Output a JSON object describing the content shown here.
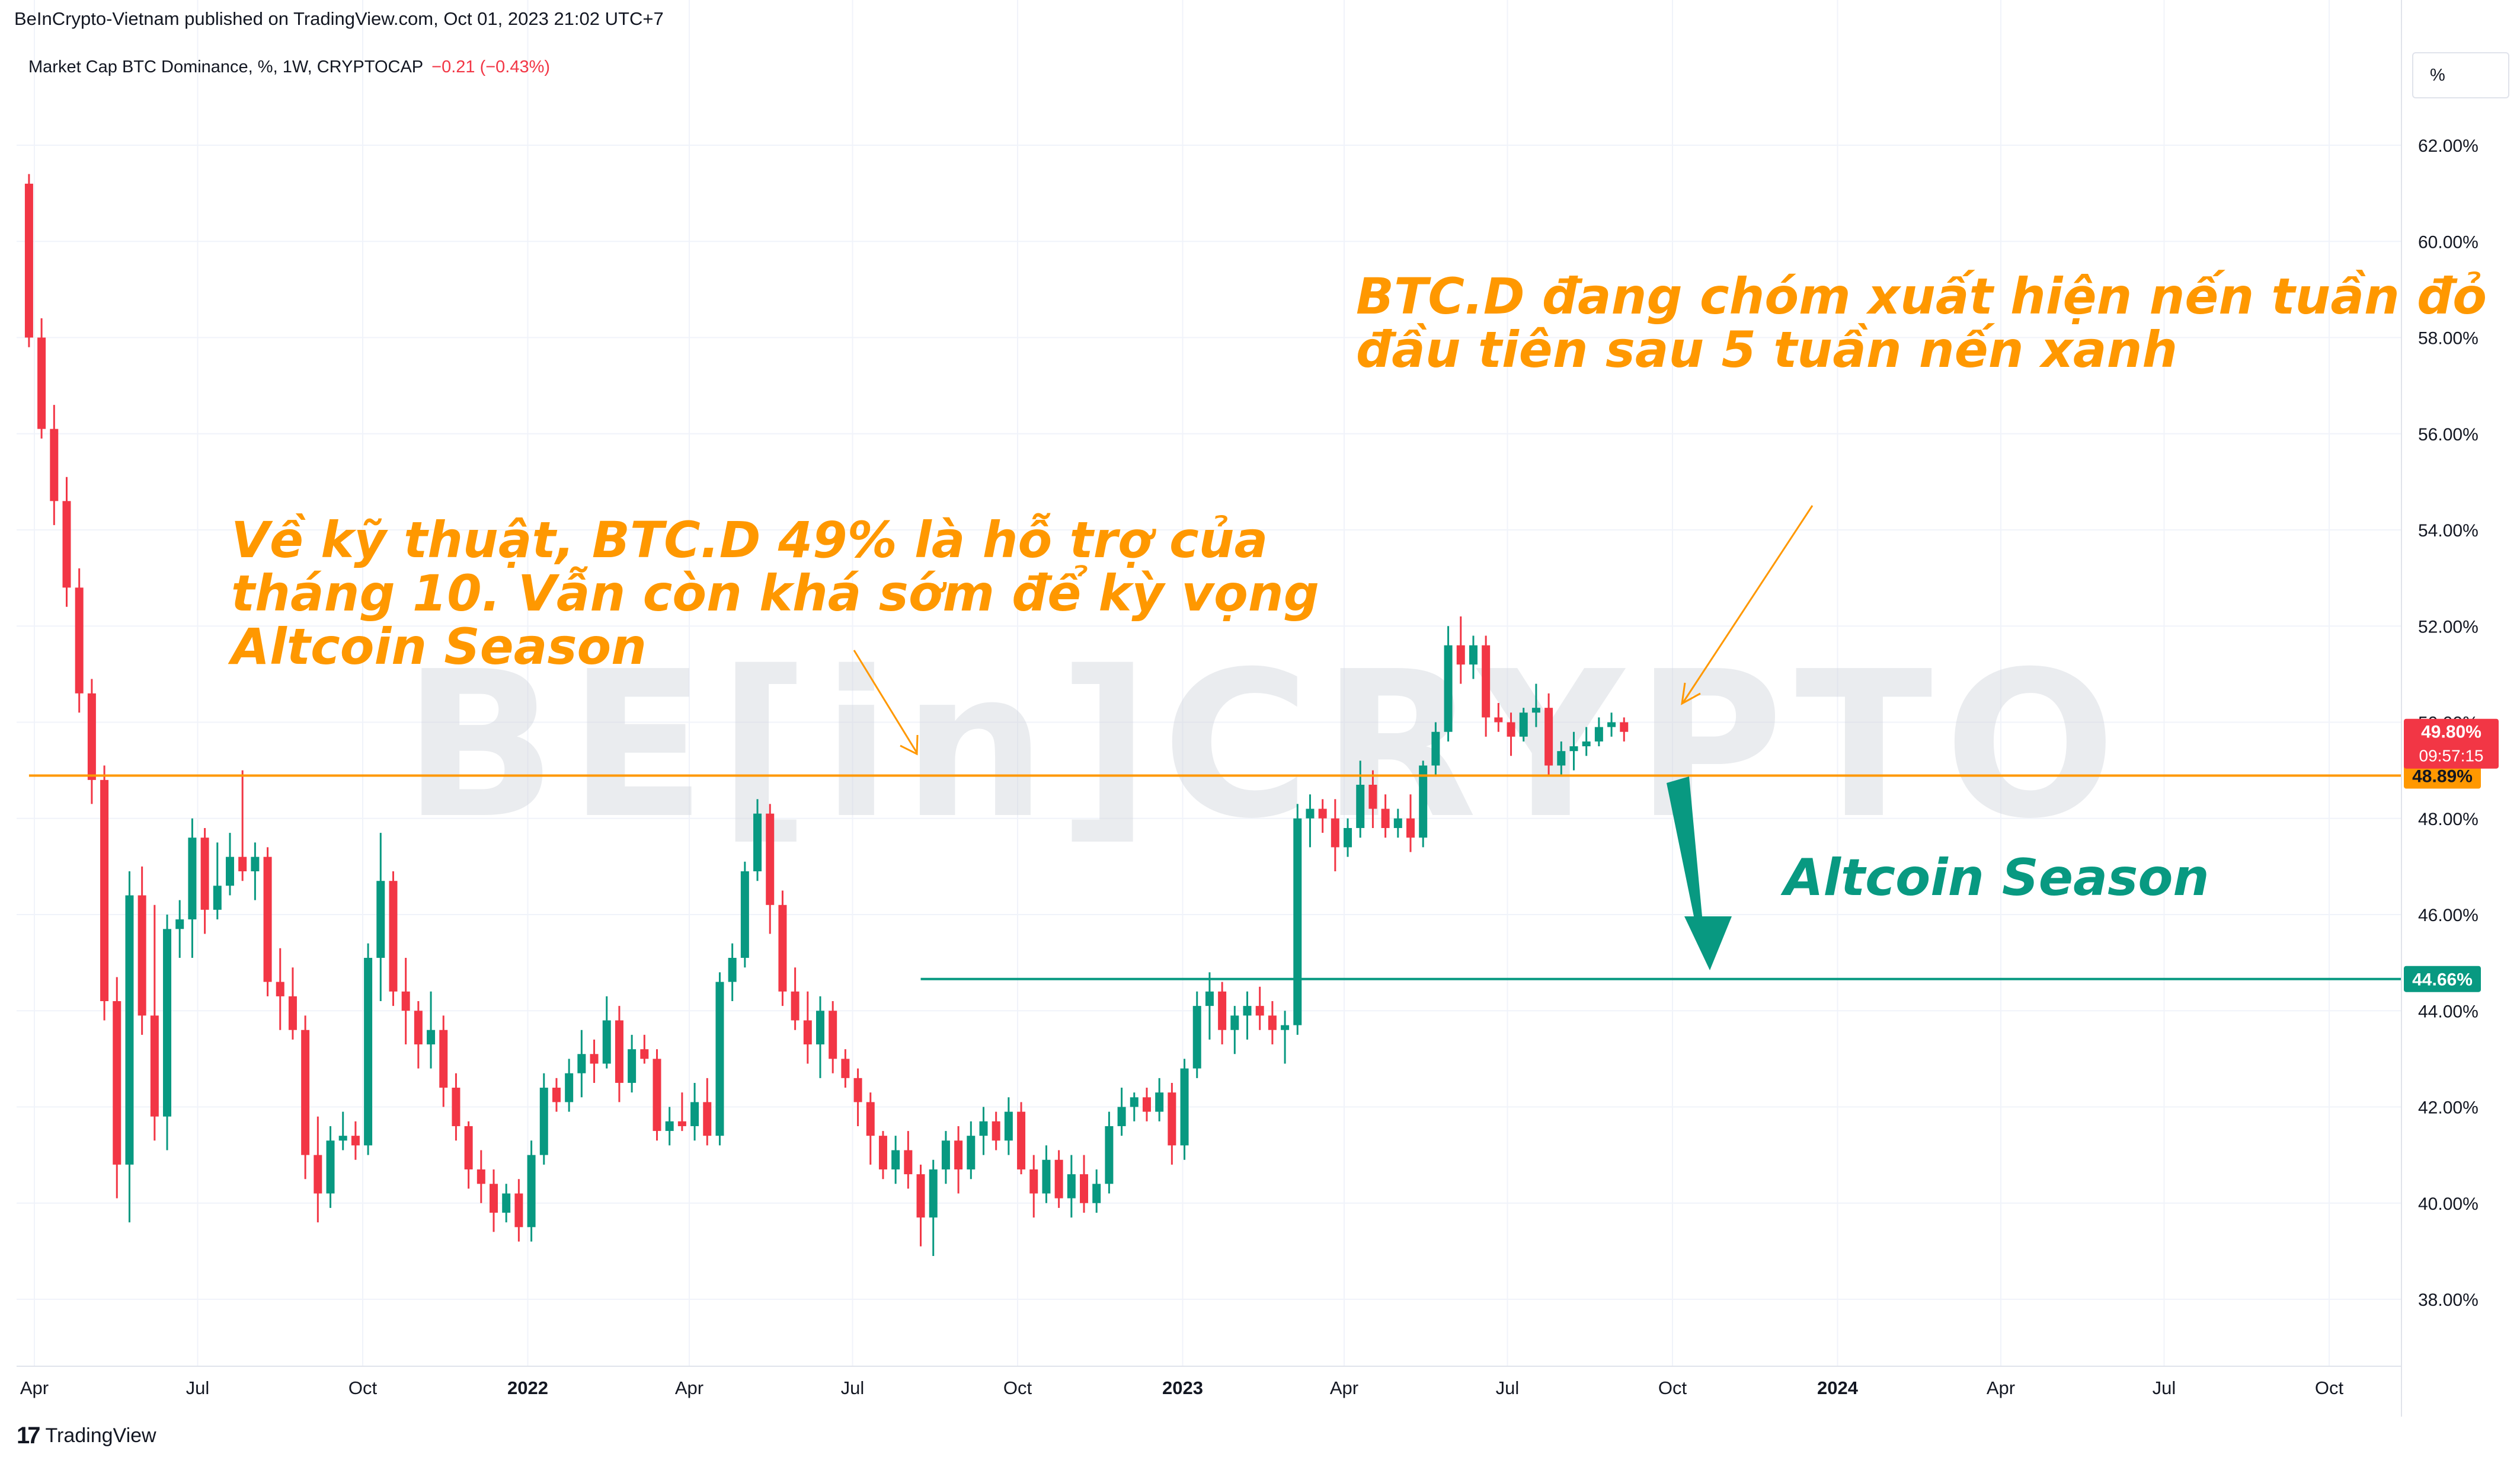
{
  "header": {
    "publisher": "BeInCrypto-Vietnam published on TradingView.com, Oct 01, 2023 21:02 UTC+7",
    "symbol": "Market Cap BTC Dominance, %, 1W, CRYPTOCAP",
    "change": "−0.21 (−0.43%)"
  },
  "price_scale_unit": "%",
  "watermark": "BE[in]CRYPTO",
  "annotations": {
    "top_right_line1": "BTC.D đang chóm xuất hiện nến tuần đỏ",
    "top_right_line2": "đầu tiên sau 5 tuần nến xanh",
    "left_line1": "Về kỹ thuật, BTC.D 49% là hỗ trợ của",
    "left_line2": "tháng 10. Vẫn còn khá sớm để kỳ vọng",
    "left_line3": "Altcoin Season",
    "altcoin": "Altcoin Season"
  },
  "colors": {
    "up": "#089981",
    "down": "#f23645",
    "orange": "#ff9800",
    "teal": "#089981",
    "grid": "#f0f3fa",
    "axis_text": "#131722"
  },
  "footer": {
    "brand": "TradingView"
  },
  "chart_data": {
    "type": "candlestick",
    "title": "Market Cap BTC Dominance, %, 1W, CRYPTOCAP",
    "ylabel": "%",
    "ylim": [
      37.0,
      64.0
    ],
    "y_ticks": [
      38,
      40,
      42,
      44,
      46,
      48,
      50,
      52,
      54,
      56,
      58,
      60,
      62
    ],
    "y_tick_labels": [
      "38.00%",
      "40.00%",
      "42.00%",
      "44.00%",
      "46.00%",
      "48.00%",
      "50.00%",
      "52.00%",
      "54.00%",
      "56.00%",
      "58.00%",
      "60.00%",
      "62.00%"
    ],
    "x_labels": [
      {
        "label": "Apr",
        "x": "2021-04-01",
        "bold": false
      },
      {
        "label": "Jul",
        "x": "2021-07-01",
        "bold": false
      },
      {
        "label": "Oct",
        "x": "2021-10-01",
        "bold": false
      },
      {
        "label": "2022",
        "x": "2022-01-01",
        "bold": true
      },
      {
        "label": "Apr",
        "x": "2022-04-01",
        "bold": false
      },
      {
        "label": "Jul",
        "x": "2022-07-01",
        "bold": false
      },
      {
        "label": "Oct",
        "x": "2022-10-01",
        "bold": false
      },
      {
        "label": "2023",
        "x": "2023-01-01",
        "bold": true
      },
      {
        "label": "Apr",
        "x": "2023-04-01",
        "bold": false
      },
      {
        "label": "Jul",
        "x": "2023-07-01",
        "bold": false
      },
      {
        "label": "Oct",
        "x": "2023-10-01",
        "bold": false
      },
      {
        "label": "2024",
        "x": "2024-01-01",
        "bold": true
      },
      {
        "label": "Apr",
        "x": "2024-04-01",
        "bold": false
      },
      {
        "label": "Jul",
        "x": "2024-07-01",
        "bold": false
      },
      {
        "label": "Oct",
        "x": "2024-10-01",
        "bold": false
      }
    ],
    "first_candle": "2021-03-29",
    "interval_days": 7,
    "candles": [
      [
        61.2,
        61.4,
        57.8,
        58.0
      ],
      [
        58.0,
        58.4,
        55.9,
        56.1
      ],
      [
        56.1,
        56.6,
        54.1,
        54.6
      ],
      [
        54.6,
        55.1,
        52.4,
        52.8
      ],
      [
        52.8,
        53.2,
        50.2,
        50.6
      ],
      [
        50.6,
        50.9,
        48.3,
        48.8
      ],
      [
        48.8,
        49.1,
        43.8,
        44.2
      ],
      [
        44.2,
        44.7,
        40.1,
        40.8
      ],
      [
        40.8,
        46.9,
        39.6,
        46.4
      ],
      [
        46.4,
        47.0,
        43.5,
        43.9
      ],
      [
        43.9,
        46.2,
        41.3,
        41.8
      ],
      [
        41.8,
        46.0,
        41.1,
        45.7
      ],
      [
        45.7,
        46.3,
        45.1,
        45.9
      ],
      [
        45.9,
        48.0,
        45.1,
        47.6
      ],
      [
        47.6,
        47.8,
        45.6,
        46.1
      ],
      [
        46.1,
        47.5,
        45.9,
        46.6
      ],
      [
        46.6,
        47.7,
        46.4,
        47.2
      ],
      [
        47.2,
        49.0,
        46.7,
        46.9
      ],
      [
        46.9,
        47.5,
        46.3,
        47.2
      ],
      [
        47.2,
        47.4,
        44.3,
        44.6
      ],
      [
        44.6,
        45.3,
        43.6,
        44.3
      ],
      [
        44.3,
        44.9,
        43.4,
        43.6
      ],
      [
        43.6,
        43.9,
        40.5,
        41.0
      ],
      [
        41.0,
        41.8,
        39.6,
        40.2
      ],
      [
        40.2,
        41.6,
        39.9,
        41.3
      ],
      [
        41.3,
        41.9,
        41.1,
        41.4
      ],
      [
        41.4,
        41.7,
        40.9,
        41.2
      ],
      [
        41.2,
        45.4,
        41.0,
        45.1
      ],
      [
        45.1,
        47.7,
        44.2,
        46.7
      ],
      [
        46.7,
        46.9,
        44.1,
        44.4
      ],
      [
        44.4,
        45.1,
        43.3,
        44.0
      ],
      [
        44.0,
        44.2,
        42.8,
        43.3
      ],
      [
        43.3,
        44.4,
        42.8,
        43.6
      ],
      [
        43.6,
        43.9,
        42.0,
        42.4
      ],
      [
        42.4,
        42.7,
        41.3,
        41.6
      ],
      [
        41.6,
        41.7,
        40.3,
        40.7
      ],
      [
        40.7,
        41.1,
        40.0,
        40.4
      ],
      [
        40.4,
        40.7,
        39.4,
        39.8
      ],
      [
        39.8,
        40.4,
        39.6,
        40.2
      ],
      [
        40.2,
        40.5,
        39.2,
        39.5
      ],
      [
        39.5,
        41.3,
        39.2,
        41.0
      ],
      [
        41.0,
        42.7,
        40.8,
        42.4
      ],
      [
        42.4,
        42.6,
        41.9,
        42.1
      ],
      [
        42.1,
        43.0,
        41.9,
        42.7
      ],
      [
        42.7,
        43.6,
        42.2,
        43.1
      ],
      [
        43.1,
        43.4,
        42.5,
        42.9
      ],
      [
        42.9,
        44.3,
        42.8,
        43.8
      ],
      [
        43.8,
        44.1,
        42.1,
        42.5
      ],
      [
        42.5,
        43.5,
        42.3,
        43.2
      ],
      [
        43.2,
        43.5,
        42.9,
        43.0
      ],
      [
        43.0,
        43.2,
        41.3,
        41.5
      ],
      [
        41.5,
        42.0,
        41.2,
        41.7
      ],
      [
        41.7,
        42.3,
        41.5,
        41.6
      ],
      [
        41.6,
        42.5,
        41.3,
        42.1
      ],
      [
        42.1,
        42.6,
        41.2,
        41.4
      ],
      [
        41.4,
        44.8,
        41.2,
        44.6
      ],
      [
        44.6,
        45.4,
        44.2,
        45.1
      ],
      [
        45.1,
        47.1,
        44.9,
        46.9
      ],
      [
        46.9,
        48.4,
        46.7,
        48.1
      ],
      [
        48.1,
        48.3,
        45.6,
        46.2
      ],
      [
        46.2,
        46.5,
        44.1,
        44.4
      ],
      [
        44.4,
        44.9,
        43.6,
        43.8
      ],
      [
        43.8,
        44.4,
        42.9,
        43.3
      ],
      [
        43.3,
        44.3,
        42.6,
        44.0
      ],
      [
        44.0,
        44.2,
        42.7,
        43.0
      ],
      [
        43.0,
        43.2,
        42.4,
        42.6
      ],
      [
        42.6,
        42.8,
        41.6,
        42.1
      ],
      [
        42.1,
        42.3,
        40.8,
        41.4
      ],
      [
        41.4,
        41.5,
        40.5,
        40.7
      ],
      [
        40.7,
        41.4,
        40.4,
        41.1
      ],
      [
        41.1,
        41.5,
        40.3,
        40.6
      ],
      [
        40.6,
        40.8,
        39.1,
        39.7
      ],
      [
        39.7,
        40.9,
        38.9,
        40.7
      ],
      [
        40.7,
        41.5,
        40.4,
        41.3
      ],
      [
        41.3,
        41.6,
        40.2,
        40.7
      ],
      [
        40.7,
        41.7,
        40.5,
        41.4
      ],
      [
        41.4,
        42.0,
        41.0,
        41.7
      ],
      [
        41.7,
        41.9,
        41.1,
        41.3
      ],
      [
        41.3,
        42.2,
        41.0,
        41.9
      ],
      [
        41.9,
        42.1,
        40.6,
        40.7
      ],
      [
        40.7,
        41.0,
        39.7,
        40.2
      ],
      [
        40.2,
        41.2,
        40.0,
        40.9
      ],
      [
        40.9,
        41.1,
        39.9,
        40.1
      ],
      [
        40.1,
        41.0,
        39.7,
        40.6
      ],
      [
        40.6,
        41.0,
        39.8,
        40.0
      ],
      [
        40.0,
        40.7,
        39.8,
        40.4
      ],
      [
        40.4,
        41.9,
        40.2,
        41.6
      ],
      [
        41.6,
        42.4,
        41.4,
        42.0
      ],
      [
        42.0,
        42.3,
        41.7,
        42.2
      ],
      [
        42.2,
        42.4,
        41.7,
        41.9
      ],
      [
        41.9,
        42.6,
        41.7,
        42.3
      ],
      [
        42.3,
        42.5,
        40.8,
        41.2
      ],
      [
        41.2,
        43.0,
        40.9,
        42.8
      ],
      [
        42.8,
        44.4,
        42.6,
        44.1
      ],
      [
        44.1,
        44.8,
        43.4,
        44.4
      ],
      [
        44.4,
        44.6,
        43.3,
        43.6
      ],
      [
        43.6,
        44.1,
        43.1,
        43.9
      ],
      [
        43.9,
        44.4,
        43.4,
        44.1
      ],
      [
        44.1,
        44.5,
        43.6,
        43.9
      ],
      [
        43.9,
        44.2,
        43.3,
        43.6
      ],
      [
        43.6,
        44.0,
        42.9,
        43.7
      ],
      [
        43.7,
        48.3,
        43.5,
        48.0
      ],
      [
        48.0,
        48.5,
        47.4,
        48.2
      ],
      [
        48.2,
        48.4,
        47.7,
        48.0
      ],
      [
        48.0,
        48.4,
        46.9,
        47.4
      ],
      [
        47.4,
        48.0,
        47.2,
        47.8
      ],
      [
        47.8,
        49.2,
        47.6,
        48.7
      ],
      [
        48.7,
        49.0,
        47.8,
        48.2
      ],
      [
        48.2,
        48.5,
        47.6,
        47.8
      ],
      [
        47.8,
        48.2,
        47.6,
        48.0
      ],
      [
        48.0,
        48.5,
        47.3,
        47.6
      ],
      [
        47.6,
        49.2,
        47.4,
        49.1
      ],
      [
        49.1,
        50.0,
        48.9,
        49.8
      ],
      [
        49.8,
        52.0,
        49.6,
        51.6
      ],
      [
        51.6,
        52.2,
        50.8,
        51.2
      ],
      [
        51.2,
        51.8,
        50.9,
        51.6
      ],
      [
        51.6,
        51.8,
        49.7,
        50.1
      ],
      [
        50.1,
        50.4,
        49.8,
        50.0
      ],
      [
        50.0,
        50.2,
        49.3,
        49.7
      ],
      [
        49.7,
        50.3,
        49.6,
        50.2
      ],
      [
        50.2,
        50.8,
        49.9,
        50.3
      ],
      [
        50.3,
        50.6,
        48.9,
        49.1
      ],
      [
        49.1,
        49.6,
        48.9,
        49.4
      ],
      [
        49.4,
        49.8,
        49.0,
        49.5
      ],
      [
        49.5,
        49.9,
        49.3,
        49.6
      ],
      [
        49.6,
        50.1,
        49.5,
        49.9
      ],
      [
        49.9,
        50.2,
        49.7,
        50.0
      ],
      [
        50.0,
        50.1,
        49.6,
        49.8
      ]
    ],
    "horizontal_lines": [
      {
        "name": "support-orange",
        "value": 48.89,
        "label": "48.89%",
        "color": "#ff9800",
        "from": "2021-03-29"
      },
      {
        "name": "support-teal",
        "value": 44.66,
        "label": "44.66%",
        "color": "#089981",
        "from": "2022-08-08"
      }
    ],
    "last_price": {
      "value": 49.8,
      "label": "49.80%",
      "countdown": "09:57:15"
    }
  }
}
